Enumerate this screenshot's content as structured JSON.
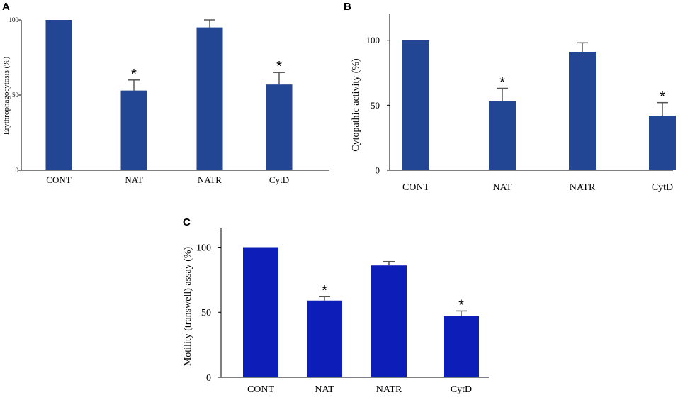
{
  "chart_data": [
    {
      "panel": "A",
      "type": "bar",
      "categories": [
        "CONT",
        "NAT",
        "NATR",
        "CytD"
      ],
      "values": [
        100,
        53,
        95,
        57
      ],
      "errors": [
        0,
        7,
        5,
        8
      ],
      "significant": [
        false,
        true,
        false,
        true
      ],
      "significance_marker": "*",
      "ylabel": "Erythrophagocytosis (%)",
      "xlabel": "",
      "ylim": [
        0,
        100
      ],
      "yticks": [
        0,
        50,
        100
      ],
      "bar_color": "#234694"
    },
    {
      "panel": "B",
      "type": "bar",
      "categories": [
        "CONT",
        "NAT",
        "NATR",
        "CytD"
      ],
      "values": [
        100,
        53,
        91,
        42
      ],
      "errors": [
        0,
        10,
        7,
        10
      ],
      "significant": [
        false,
        true,
        false,
        true
      ],
      "significance_marker": "*",
      "ylabel": "Cytopathic activity (%)",
      "xlabel": "",
      "ylim": [
        0,
        120
      ],
      "yticks": [
        0,
        50,
        100
      ],
      "bar_color": "#234694"
    },
    {
      "panel": "C",
      "type": "bar",
      "categories": [
        "CONT",
        "NAT",
        "NATR",
        "CytD"
      ],
      "values": [
        100,
        59,
        86,
        47
      ],
      "errors": [
        0,
        3,
        3,
        4
      ],
      "significant": [
        false,
        true,
        false,
        true
      ],
      "significance_marker": "*",
      "ylabel": "Motility (transwell) assay  (%)",
      "xlabel": "",
      "ylim": [
        0,
        115
      ],
      "yticks": [
        0,
        50,
        100
      ],
      "bar_color": "#0d1db8"
    }
  ]
}
